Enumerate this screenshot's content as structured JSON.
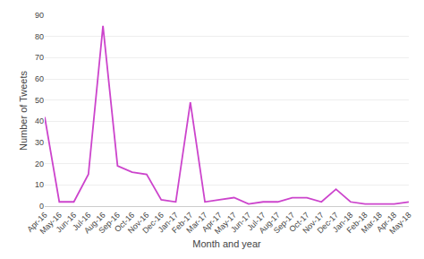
{
  "chart_data": {
    "type": "line",
    "xlabel": "Month and year",
    "ylabel": "Number of Tweets",
    "categories": [
      "Apr-16",
      "May-16",
      "Jun-16",
      "Jul-16",
      "Aug-16",
      "Sep-16",
      "Oct-16",
      "Nov-16",
      "Dec-16",
      "Jan-17",
      "Feb-17",
      "Mar-17",
      "Apr-17",
      "May-17",
      "Jun-17",
      "Jul-17",
      "Aug-17",
      "Sep-17",
      "Oct-17",
      "Nov-17",
      "Dec-17",
      "Jan-18",
      "Feb-18",
      "Mar-18",
      "Apr-18",
      "May-18"
    ],
    "values": [
      42,
      2,
      2,
      15,
      85,
      19,
      16,
      15,
      3,
      2,
      49,
      2,
      3,
      4,
      1,
      2,
      2,
      4,
      4,
      2,
      8,
      2,
      1,
      1,
      1,
      2
    ],
    "color": "#cc44cc",
    "ylim": [
      0,
      90
    ],
    "yticks": [
      0,
      10,
      20,
      30,
      40,
      50,
      60,
      70,
      80,
      90
    ],
    "grid": true
  }
}
